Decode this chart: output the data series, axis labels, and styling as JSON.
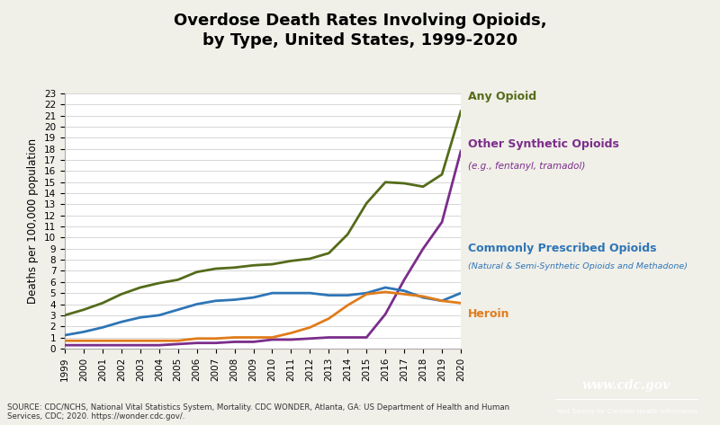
{
  "title": "Overdose Death Rates Involving Opioids,\nby Type, United States, 1999-2020",
  "ylabel": "Deaths per 100,000 population",
  "years": [
    1999,
    2000,
    2001,
    2002,
    2003,
    2004,
    2005,
    2006,
    2007,
    2008,
    2009,
    2010,
    2011,
    2012,
    2013,
    2014,
    2015,
    2016,
    2017,
    2018,
    2019,
    2020
  ],
  "any_opioid": [
    3.0,
    3.5,
    4.1,
    4.9,
    5.5,
    5.9,
    6.2,
    6.9,
    7.2,
    7.3,
    7.5,
    7.6,
    7.9,
    8.1,
    8.6,
    10.3,
    13.1,
    15.0,
    14.9,
    14.6,
    15.7,
    21.4
  ],
  "any_opioid_color": "#556b1a",
  "synthetic": [
    0.3,
    0.3,
    0.3,
    0.3,
    0.3,
    0.3,
    0.4,
    0.5,
    0.5,
    0.6,
    0.6,
    0.8,
    0.8,
    0.9,
    1.0,
    1.0,
    1.0,
    3.1,
    6.2,
    9.0,
    11.4,
    17.8
  ],
  "synthetic_color": "#7b2d8b",
  "prescribed": [
    1.2,
    1.5,
    1.9,
    2.4,
    2.8,
    3.0,
    3.5,
    4.0,
    4.3,
    4.4,
    4.6,
    5.0,
    5.0,
    5.0,
    4.8,
    4.8,
    5.0,
    5.5,
    5.2,
    4.6,
    4.3,
    5.0
  ],
  "prescribed_color": "#2e75b6",
  "heroin": [
    0.7,
    0.7,
    0.7,
    0.7,
    0.7,
    0.7,
    0.7,
    0.9,
    0.9,
    1.0,
    1.0,
    1.0,
    1.4,
    1.9,
    2.7,
    3.9,
    4.9,
    5.1,
    4.9,
    4.7,
    4.3,
    4.1
  ],
  "heroin_color": "#e07c1a",
  "ylim": [
    0,
    23
  ],
  "yticks": [
    0,
    1,
    2,
    3,
    4,
    5,
    6,
    7,
    8,
    9,
    10,
    11,
    12,
    13,
    14,
    15,
    16,
    17,
    18,
    19,
    20,
    21,
    22,
    23
  ],
  "xlim_min": 1999,
  "xlim_max": 2020,
  "source_text": "SOURCE: CDC/NCHS, National Vital Statistics System, Mortality. CDC WONDER, Atlanta, GA: US Department of Health and Human\nServices, CDC; 2020. https://wonder.cdc.gov/.",
  "bg_color": "#f0efe8",
  "plot_bg_color": "#ffffff",
  "cdc_blue": "#1a5fa8"
}
